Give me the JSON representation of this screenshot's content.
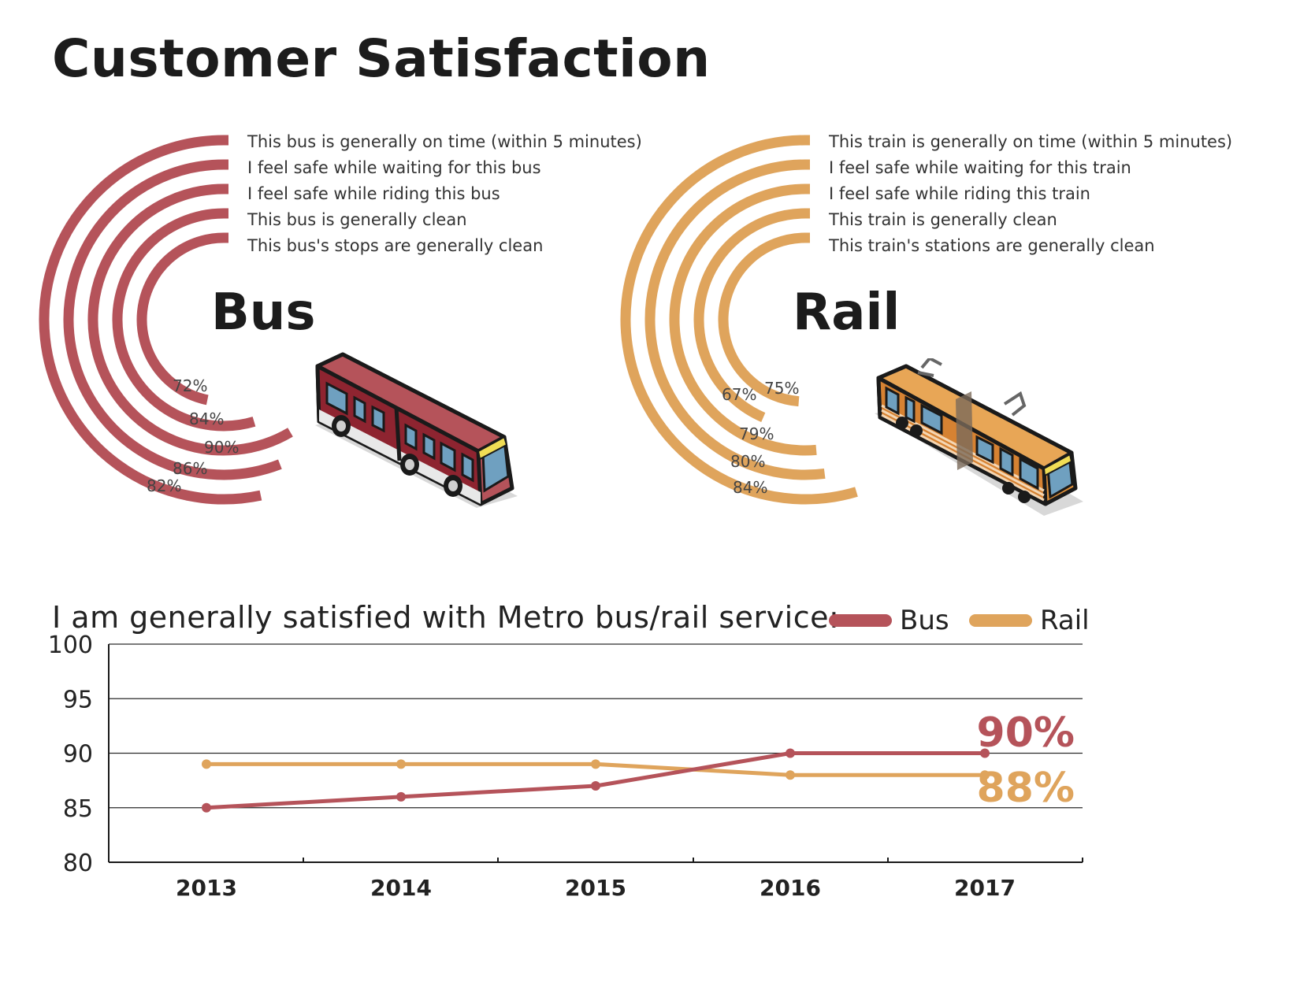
{
  "title": "Customer Satisfaction",
  "bus": {
    "title": "Bus",
    "color": "#b5535a",
    "questions": [
      "This bus is generally on time (within 5 minutes)",
      "I feel safe while waiting for this bus",
      "I feel safe while riding this bus",
      "This bus is generally clean",
      "This bus's stops are generally clean"
    ],
    "percents": [
      "82%",
      "86%",
      "90%",
      "84%",
      "72%"
    ],
    "values": [
      82,
      86,
      90,
      84,
      72
    ]
  },
  "rail": {
    "title": "Rail",
    "color": "#dfa45c",
    "questions": [
      "This train is generally on time (within 5 minutes)",
      "I feel safe while waiting for this train",
      "I feel safe while riding this train",
      "This train is generally clean",
      "This train's stations are generally clean"
    ],
    "percents": [
      "84%",
      "80%",
      "79%",
      "67%",
      "75%"
    ],
    "values": [
      84,
      80,
      79,
      67,
      75
    ]
  },
  "chart_data": {
    "type": "line",
    "title": "I am generally satisfied with Metro bus/rail service:",
    "x": [
      "2013",
      "2014",
      "2015",
      "2016",
      "2017"
    ],
    "ylim": [
      80,
      100
    ],
    "yticks": [
      "80",
      "85",
      "90",
      "95",
      "100"
    ],
    "series": [
      {
        "name": "Bus",
        "color": "#b5535a",
        "values": [
          85,
          86,
          87,
          90,
          90
        ],
        "end_label": "90%"
      },
      {
        "name": "Rail",
        "color": "#dfa45c",
        "values": [
          89,
          89,
          89,
          88,
          88
        ],
        "end_label": "88%"
      }
    ],
    "grid": true,
    "legend": "top-right"
  }
}
